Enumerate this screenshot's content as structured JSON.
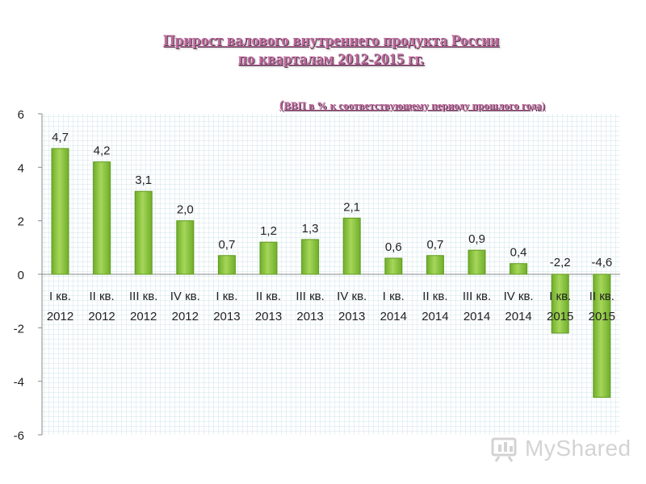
{
  "chart_data": {
    "type": "bar",
    "title_line1": "Прирост валового внутреннего продукта России",
    "title_line2": "по кварталам 2012-2015 гг.",
    "subtitle_open": "(",
    "subtitle": "ВВП в % к соответствующему периоду прошлого года)",
    "categories": [
      [
        "I кв.",
        "2012"
      ],
      [
        "II кв.",
        "2012"
      ],
      [
        "III кв.",
        "2012"
      ],
      [
        "IV кв.",
        "2012"
      ],
      [
        "I кв.",
        "2013"
      ],
      [
        "II кв.",
        "2013"
      ],
      [
        "III кв.",
        "2013"
      ],
      [
        "IV кв.",
        "2013"
      ],
      [
        "I кв.",
        "2014"
      ],
      [
        "II кв.",
        "2014"
      ],
      [
        "III кв.",
        "2014"
      ],
      [
        "IV кв.",
        "2014"
      ],
      [
        "I кв.",
        "2015"
      ],
      [
        "II кв.",
        "2015"
      ]
    ],
    "values": [
      4.7,
      4.2,
      3.1,
      2.0,
      0.7,
      1.2,
      1.3,
      2.1,
      0.6,
      0.7,
      0.9,
      0.4,
      -2.2,
      -4.6
    ],
    "data_labels": [
      "4,7",
      "4,2",
      "3,1",
      "2,0",
      "0,7",
      "1,2",
      "1,3",
      "2,1",
      "0,6",
      "0,7",
      "0,9",
      "0,4",
      "-2,2",
      "-4,6"
    ],
    "ylim": [
      -6,
      6
    ],
    "yticks": [
      "6",
      "4",
      "2",
      "0",
      "-2",
      "-4",
      "-6"
    ],
    "ytick_values": [
      6,
      4,
      2,
      0,
      -2,
      -4,
      -6
    ],
    "grid": true,
    "bar_color": "#8cc63f",
    "bar_edge_color": "#5f9a1e",
    "grid_color": "#cfe3ea"
  },
  "watermark": {
    "text": "MyShared"
  }
}
